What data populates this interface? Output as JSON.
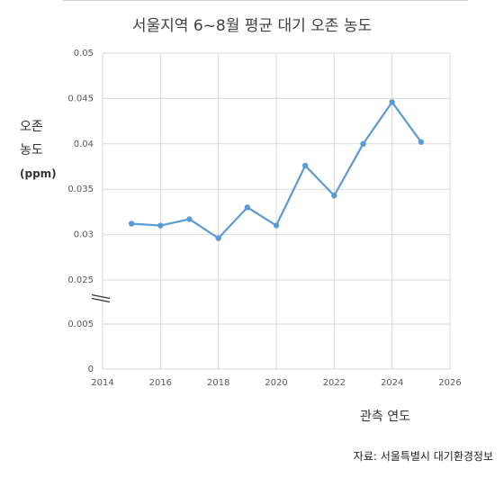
{
  "chart_data": {
    "type": "line",
    "title": "서울지역 6~8월 평균 대기 오존 농도",
    "ylabel_lines": [
      "오존",
      "농도",
      "(ppm)"
    ],
    "xlabel": "관측 연도",
    "source": "자료: 서울특별시 대기환경정보",
    "x_ticks": [
      "2014",
      "2016",
      "2018",
      "2020",
      "2022",
      "2024",
      "2026"
    ],
    "y_ticks_upper": [
      "0.05",
      "0.045",
      "0.04",
      "0.035",
      "0.03",
      "0.025"
    ],
    "y_ticks_lower": [
      "0.005",
      "0"
    ],
    "axis_break": true,
    "xlim": [
      2014,
      2026
    ],
    "ylim_upper": [
      0.025,
      0.05
    ],
    "ylim_lower": [
      0,
      0.005
    ],
    "grid": true,
    "series_color": "#5b9bd5",
    "series": [
      {
        "x": [
          2015,
          2016,
          2017,
          2018,
          2019,
          2020,
          2021,
          2022,
          2023,
          2024,
          2025
        ],
        "values": [
          0.0312,
          0.031,
          0.0317,
          0.0296,
          0.033,
          0.031,
          0.0376,
          0.0343,
          0.04,
          0.0446,
          0.0402
        ]
      }
    ]
  }
}
